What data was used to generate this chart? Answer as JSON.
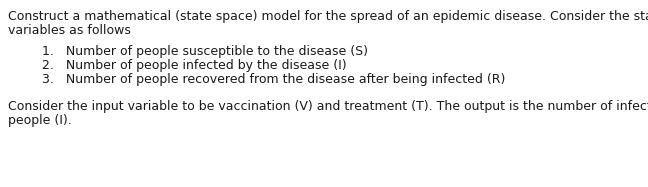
{
  "background_color": "#ffffff",
  "text_color": "#1a1a1a",
  "font_family": "DejaVu Sans",
  "font_size": 9.0,
  "line1": "Construct a mathematical (state space) model for the spread of an epidemic disease. Consider the state",
  "line2": "variables as follows",
  "item1": "1.   Number of people susceptible to the disease (S)",
  "item2": "2.   Number of people infected by the disease (I)",
  "item3": "3.   Number of people recovered from the disease after being infected (R)",
  "line3": "Consider the input variable to be vaccination (V) and treatment (T). The output is the number of infected",
  "line4": "people (I).",
  "figsize": [
    6.48,
    1.87
  ],
  "dpi": 100
}
